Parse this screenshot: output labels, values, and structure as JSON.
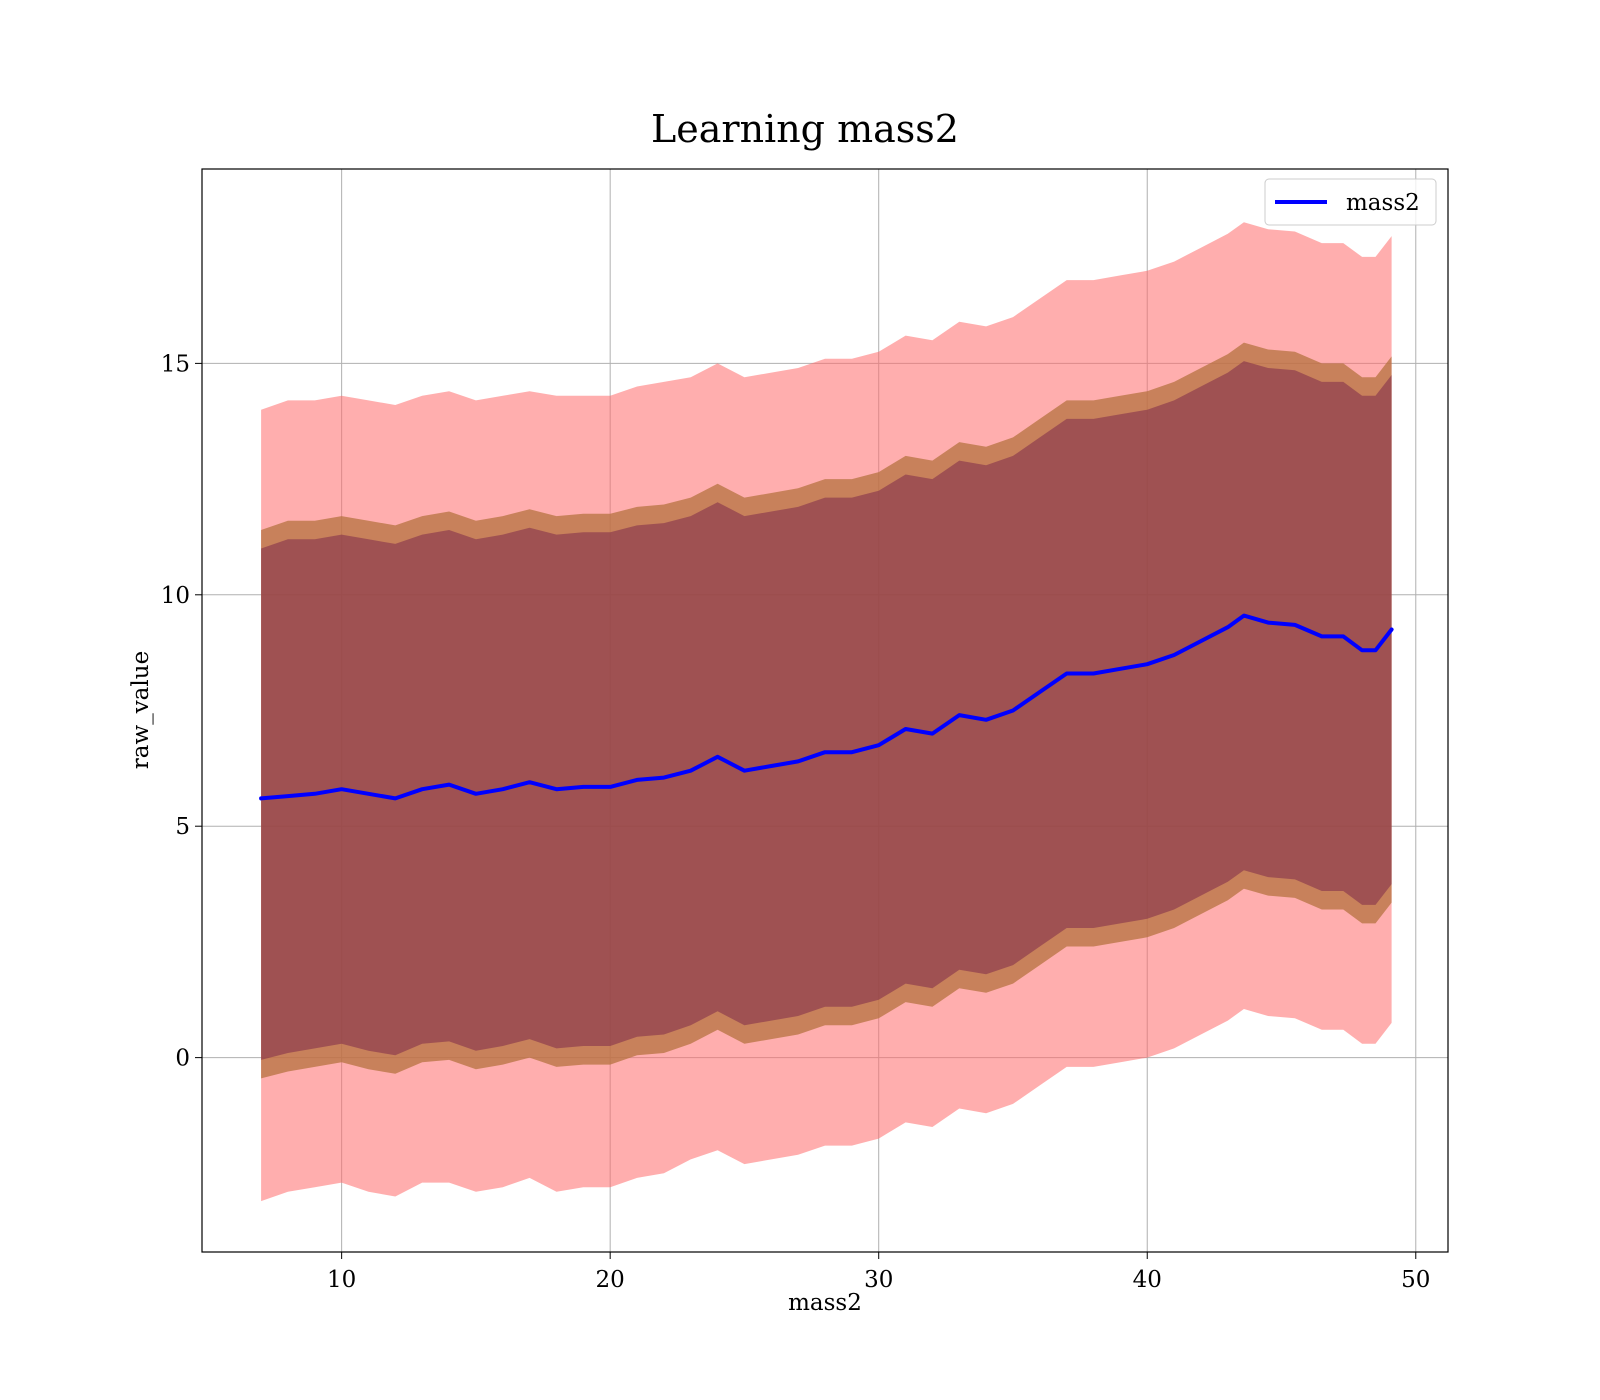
{
  "chart_data": {
    "type": "line",
    "title": "Learning mass2",
    "xlabel": "mass2",
    "ylabel": "raw_value",
    "xlim": [
      4.8,
      51.2
    ],
    "ylim": [
      -4.2,
      19.2
    ],
    "x_ticks": [
      10,
      20,
      30,
      40,
      50
    ],
    "y_ticks": [
      0,
      5,
      10,
      15
    ],
    "grid": true,
    "legend_position": "top-right",
    "colors": {
      "line": "#0000ff",
      "outer_band": "#ff6b6b",
      "middle_band": "#b6723f",
      "inner_band": "#7d2a4b"
    },
    "series": [
      {
        "name": "mass2",
        "x": [
          7.0,
          8.0,
          9.0,
          10.0,
          11.0,
          12.0,
          13.0,
          14.0,
          15.0,
          16.0,
          17.0,
          18.0,
          19.0,
          20.0,
          21.0,
          22.0,
          23.0,
          24.0,
          25.0,
          26.0,
          27.0,
          28.0,
          29.0,
          30.0,
          31.0,
          32.0,
          33.0,
          34.0,
          35.0,
          36.0,
          37.0,
          38.0,
          39.0,
          40.0,
          41.0,
          42.0,
          43.0,
          43.6,
          44.5,
          45.5,
          46.5,
          47.3,
          48.0,
          48.5,
          49.1
        ],
        "y": [
          5.6,
          5.65,
          5.7,
          5.8,
          5.7,
          5.6,
          5.8,
          5.9,
          5.7,
          5.8,
          5.95,
          5.8,
          5.85,
          5.85,
          6.0,
          6.05,
          6.2,
          6.5,
          6.2,
          6.3,
          6.4,
          6.6,
          6.6,
          6.75,
          7.1,
          7.0,
          7.4,
          7.3,
          7.5,
          7.9,
          8.3,
          8.3,
          8.4,
          8.5,
          8.7,
          9.0,
          9.3,
          9.55,
          9.4,
          9.35,
          9.1,
          9.1,
          8.8,
          8.8,
          9.25
        ]
      }
    ],
    "bands": [
      {
        "x": [
          7.0,
          8.0,
          9.0,
          10.0,
          11.0,
          12.0,
          13.0,
          14.0,
          15.0,
          16.0,
          17.0,
          18.0,
          19.0,
          20.0,
          21.0,
          22.0,
          23.0,
          24.0,
          25.0,
          26.0,
          27.0,
          28.0,
          29.0,
          30.0,
          31.0,
          32.0,
          33.0,
          34.0,
          35.0,
          36.0,
          37.0,
          38.0,
          39.0,
          40.0,
          41.0,
          42.0,
          43.0,
          43.6,
          44.5,
          45.5,
          46.5,
          47.3,
          48.0,
          48.5,
          49.1
        ],
        "lower": [
          -3.1,
          -2.9,
          -2.8,
          -2.7,
          -2.9,
          -3.0,
          -2.7,
          -2.7,
          -2.9,
          -2.8,
          -2.6,
          -2.9,
          -2.8,
          -2.8,
          -2.6,
          -2.5,
          -2.2,
          -2.0,
          -2.3,
          -2.2,
          -2.1,
          -1.9,
          -1.9,
          -1.75,
          -1.4,
          -1.5,
          -1.1,
          -1.2,
          -1.0,
          -0.6,
          -0.2,
          -0.2,
          -0.1,
          0.0,
          0.2,
          0.5,
          0.8,
          1.05,
          0.9,
          0.85,
          0.6,
          0.6,
          0.3,
          0.3,
          0.75
        ],
        "upper": [
          14.0,
          14.2,
          14.2,
          14.3,
          14.2,
          14.1,
          14.3,
          14.4,
          14.2,
          14.3,
          14.4,
          14.3,
          14.3,
          14.3,
          14.5,
          14.6,
          14.7,
          15.0,
          14.7,
          14.8,
          14.9,
          15.1,
          15.1,
          15.25,
          15.6,
          15.5,
          15.9,
          15.8,
          16.0,
          16.4,
          16.8,
          16.8,
          16.9,
          17.0,
          17.2,
          17.5,
          17.8,
          18.05,
          17.9,
          17.85,
          17.6,
          17.6,
          17.3,
          17.3,
          17.75
        ]
      },
      {
        "x": [
          7.0,
          8.0,
          9.0,
          10.0,
          11.0,
          12.0,
          13.0,
          14.0,
          15.0,
          16.0,
          17.0,
          18.0,
          19.0,
          20.0,
          21.0,
          22.0,
          23.0,
          24.0,
          25.0,
          26.0,
          27.0,
          28.0,
          29.0,
          30.0,
          31.0,
          32.0,
          33.0,
          34.0,
          35.0,
          36.0,
          37.0,
          38.0,
          39.0,
          40.0,
          41.0,
          42.0,
          43.0,
          43.6,
          44.5,
          45.5,
          46.5,
          47.3,
          48.0,
          48.5,
          49.1
        ],
        "lower": [
          -0.45,
          -0.3,
          -0.2,
          -0.1,
          -0.25,
          -0.35,
          -0.1,
          -0.05,
          -0.25,
          -0.15,
          0.0,
          -0.2,
          -0.15,
          -0.15,
          0.05,
          0.1,
          0.3,
          0.6,
          0.3,
          0.4,
          0.5,
          0.7,
          0.7,
          0.85,
          1.2,
          1.1,
          1.5,
          1.4,
          1.6,
          2.0,
          2.4,
          2.4,
          2.5,
          2.6,
          2.8,
          3.1,
          3.4,
          3.65,
          3.5,
          3.45,
          3.2,
          3.2,
          2.9,
          2.9,
          3.35
        ],
        "upper": [
          11.4,
          11.6,
          11.6,
          11.7,
          11.6,
          11.5,
          11.7,
          11.8,
          11.6,
          11.7,
          11.85,
          11.7,
          11.75,
          11.75,
          11.9,
          11.95,
          12.1,
          12.4,
          12.1,
          12.2,
          12.3,
          12.5,
          12.5,
          12.65,
          13.0,
          12.9,
          13.3,
          13.2,
          13.4,
          13.8,
          14.2,
          14.2,
          14.3,
          14.4,
          14.6,
          14.9,
          15.2,
          15.45,
          15.3,
          15.25,
          15.0,
          15.0,
          14.7,
          14.7,
          15.15
        ]
      },
      {
        "x": [
          7.0,
          8.0,
          9.0,
          10.0,
          11.0,
          12.0,
          13.0,
          14.0,
          15.0,
          16.0,
          17.0,
          18.0,
          19.0,
          20.0,
          21.0,
          22.0,
          23.0,
          24.0,
          25.0,
          26.0,
          27.0,
          28.0,
          29.0,
          30.0,
          31.0,
          32.0,
          33.0,
          34.0,
          35.0,
          36.0,
          37.0,
          38.0,
          39.0,
          40.0,
          41.0,
          42.0,
          43.0,
          43.6,
          44.5,
          45.5,
          46.5,
          47.3,
          48.0,
          48.5,
          49.1
        ],
        "lower": [
          -0.05,
          0.1,
          0.2,
          0.3,
          0.15,
          0.05,
          0.3,
          0.35,
          0.15,
          0.25,
          0.4,
          0.2,
          0.25,
          0.25,
          0.45,
          0.5,
          0.7,
          1.0,
          0.7,
          0.8,
          0.9,
          1.1,
          1.1,
          1.25,
          1.6,
          1.5,
          1.9,
          1.8,
          2.0,
          2.4,
          2.8,
          2.8,
          2.9,
          3.0,
          3.2,
          3.5,
          3.8,
          4.05,
          3.9,
          3.85,
          3.6,
          3.6,
          3.3,
          3.3,
          3.75
        ],
        "upper": [
          11.0,
          11.2,
          11.2,
          11.3,
          11.2,
          11.1,
          11.3,
          11.4,
          11.2,
          11.3,
          11.45,
          11.3,
          11.35,
          11.35,
          11.5,
          11.55,
          11.7,
          12.0,
          11.7,
          11.8,
          11.9,
          12.1,
          12.1,
          12.25,
          12.6,
          12.5,
          12.9,
          12.8,
          13.0,
          13.4,
          13.8,
          13.8,
          13.9,
          14.0,
          14.2,
          14.5,
          14.8,
          15.05,
          14.9,
          14.85,
          14.6,
          14.6,
          14.3,
          14.3,
          14.75
        ]
      }
    ]
  }
}
